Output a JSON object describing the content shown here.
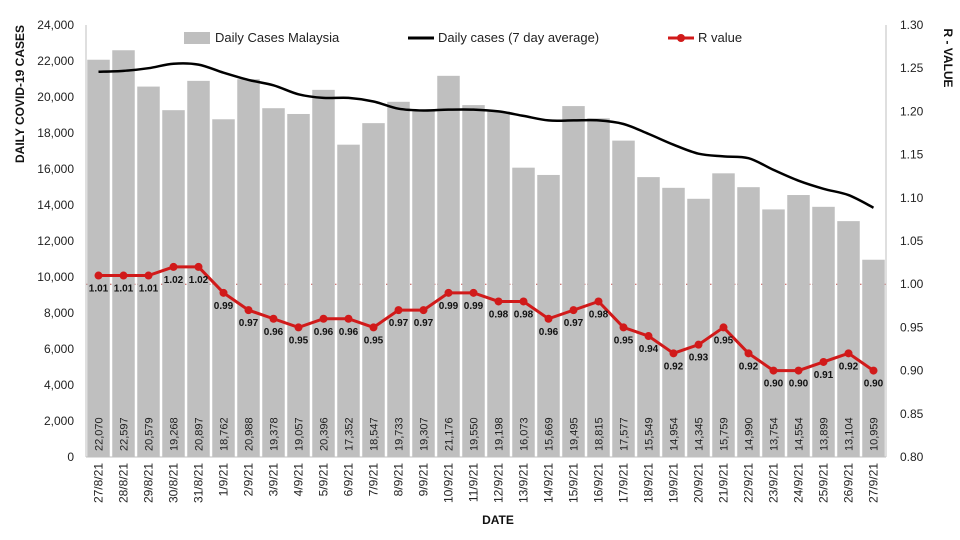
{
  "chart_data": {
    "type": "bar",
    "categories": [
      "27/8/21",
      "28/8/21",
      "29/8/21",
      "30/8/21",
      "31/8/21",
      "1/9/21",
      "2/9/21",
      "3/9/21",
      "4/9/21",
      "5/9/21",
      "6/9/21",
      "7/9/21",
      "8/9/21",
      "9/9/21",
      "10/9/21",
      "11/9/21",
      "12/9/21",
      "13/9/21",
      "14/9/21",
      "15/9/21",
      "16/9/21",
      "17/9/21",
      "18/9/21",
      "19/9/21",
      "20/9/21",
      "21/9/21",
      "22/9/21",
      "23/9/21",
      "24/9/21",
      "25/9/21",
      "26/9/21",
      "27/9/21"
    ],
    "series": [
      {
        "name": "Daily Cases Malaysia",
        "type": "bar",
        "axis": "left",
        "color": "#bfbfbf",
        "values": [
          22070,
          22597,
          20579,
          19268,
          20897,
          18762,
          20988,
          19378,
          19057,
          20396,
          17352,
          18547,
          19733,
          19307,
          21176,
          19550,
          19198,
          16073,
          15669,
          19495,
          18815,
          17577,
          15549,
          14954,
          14345,
          15759,
          14990,
          13754,
          14554,
          13899,
          13104,
          10959
        ],
        "labels": [
          "22,070",
          "22,597",
          "20,579",
          "19,268",
          "20,897",
          "18,762",
          "20,988",
          "19,378",
          "19,057",
          "20,396",
          "17,352",
          "18,547",
          "19,733",
          "19,307",
          "21,176",
          "19,550",
          "19,198",
          "16,073",
          "15,669",
          "19,495",
          "18,815",
          "17,577",
          "15,549",
          "14,954",
          "14,345",
          "15,759",
          "14,990",
          "13,754",
          "14,554",
          "13,899",
          "13,104",
          "10,959"
        ]
      },
      {
        "name": "Daily cases (7 day average)",
        "type": "line",
        "axis": "left",
        "color": "#000000",
        "values": [
          21400,
          21450,
          21600,
          21850,
          21800,
          21350,
          20950,
          20650,
          20150,
          19950,
          19950,
          19750,
          19350,
          19250,
          19300,
          19300,
          19200,
          18950,
          18700,
          18700,
          18700,
          18500,
          17950,
          17350,
          16850,
          16700,
          16600,
          15950,
          15350,
          14900,
          14550,
          13850
        ]
      },
      {
        "name": "R value",
        "type": "line",
        "axis": "right",
        "color": "#d11a1a",
        "values": [
          1.01,
          1.01,
          1.01,
          1.02,
          1.02,
          0.99,
          0.97,
          0.96,
          0.95,
          0.96,
          0.96,
          0.95,
          0.97,
          0.97,
          0.99,
          0.99,
          0.98,
          0.98,
          0.96,
          0.97,
          0.98,
          0.95,
          0.94,
          0.92,
          0.93,
          0.95,
          0.92,
          0.9,
          0.9,
          0.91,
          0.92,
          0.9
        ],
        "labels": [
          "1.01",
          "1.01",
          "1.01",
          "1.02",
          "1.02",
          "0.99",
          "0.97",
          "0.96",
          "0.95",
          "0.96",
          "0.96",
          "0.95",
          "0.97",
          "0.97",
          "0.99",
          "0.99",
          "0.98",
          "0.98",
          "0.96",
          "0.97",
          "0.98",
          "0.95",
          "0.94",
          "0.92",
          "0.93",
          "0.95",
          "0.92",
          "0.90",
          "0.90",
          "0.91",
          "0.92",
          "0.90"
        ]
      }
    ],
    "reference_line": {
      "axis": "right",
      "value": 1.0,
      "color": "#c0504d",
      "style": "dotted"
    },
    "xlabel": "DATE",
    "ylabel": "DAILY COVID-19 CASES",
    "y2label": "R - VALUE",
    "ylim": [
      0,
      24000
    ],
    "y2lim": [
      0.8,
      1.3
    ],
    "yticks": [
      "0",
      "2,000",
      "4,000",
      "6,000",
      "8,000",
      "10,000",
      "12,000",
      "14,000",
      "16,000",
      "18,000",
      "20,000",
      "22,000",
      "24,000"
    ],
    "y2ticks": [
      "0.80",
      "0.85",
      "0.90",
      "0.95",
      "1.00",
      "1.05",
      "1.10",
      "1.15",
      "1.20",
      "1.25",
      "1.30"
    ],
    "grid": false,
    "legend": "top"
  }
}
